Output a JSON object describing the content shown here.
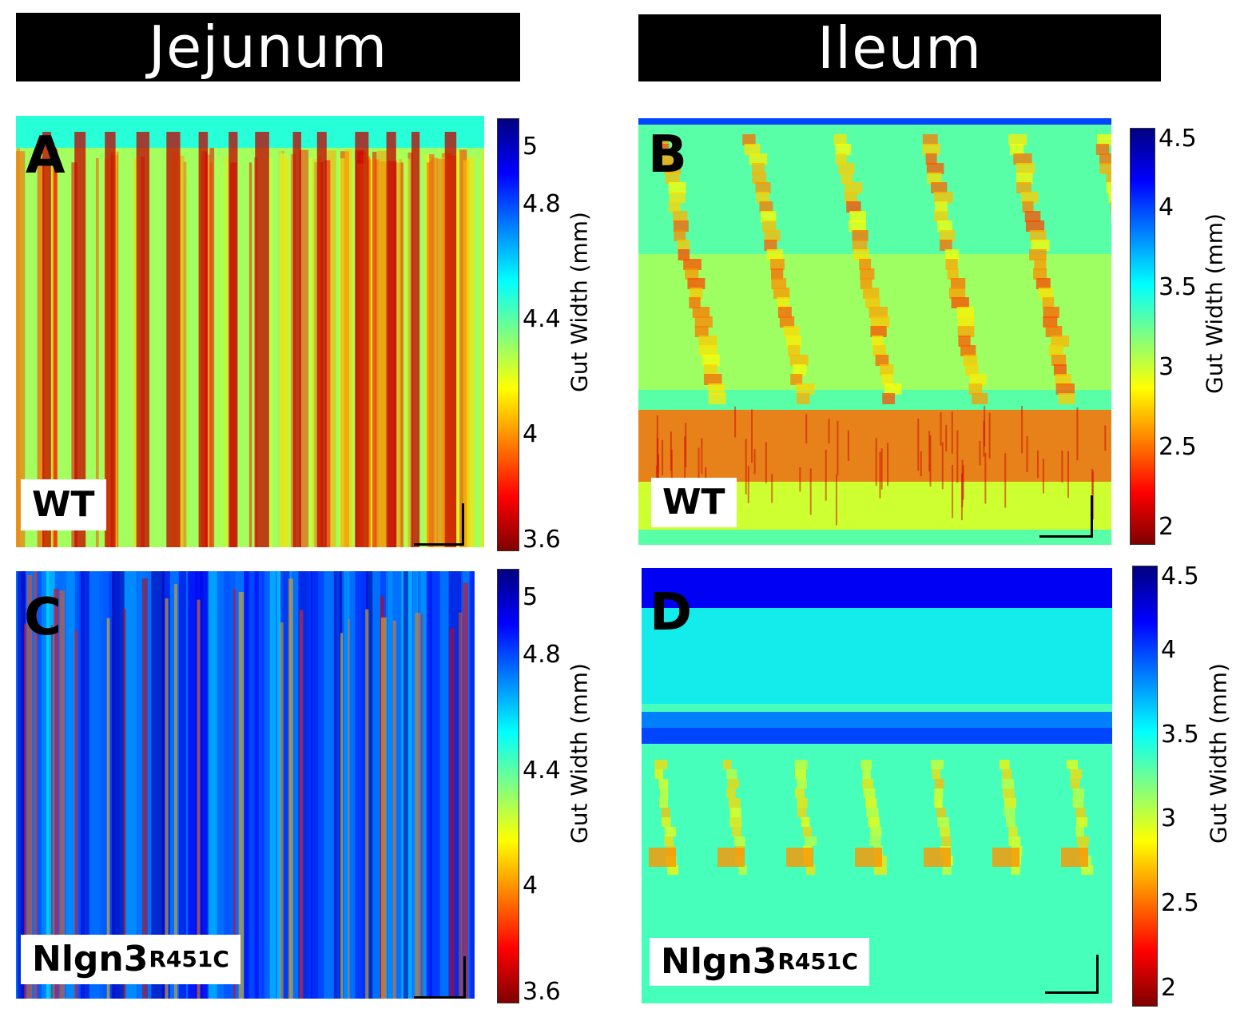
{
  "headers": {
    "left": "Jejunum",
    "right": "Ileum"
  },
  "colors": {
    "jet": [
      "#7f0000",
      "#ff0000",
      "#ff8000",
      "#ffff00",
      "#80ff80",
      "#00ffff",
      "#0080ff",
      "#0000ff",
      "#00007f"
    ],
    "header_bg": "#000000",
    "header_text": "#ffffff"
  },
  "chart_data": [
    {
      "type": "heatmap",
      "panel": "A",
      "region": "Jejunum",
      "genotype": "WT",
      "genotype_sup": "",
      "colorbar": {
        "label": "Gut Width (mm)",
        "min": 3.6,
        "max": 5.1,
        "ticks": [
          "5",
          "4.8",
          "4.4",
          "4",
          "3.6"
        ],
        "tick_values": [
          5,
          4.8,
          4.4,
          4,
          3.6
        ]
      },
      "pattern": "dense vertical contraction bands",
      "background_value": 4.3,
      "band_value": 3.7,
      "band_count": 14
    },
    {
      "type": "heatmap",
      "panel": "B",
      "region": "Ileum",
      "genotype": "WT",
      "genotype_sup": "",
      "colorbar": {
        "label": "Gut Width (mm)",
        "min": 1.9,
        "max": 4.5,
        "ticks": [
          "4.5",
          "4",
          "3.5",
          "3",
          "2.5",
          "2"
        ],
        "tick_values": [
          4.5,
          4,
          3.5,
          3,
          2.5,
          2
        ]
      },
      "pattern": "diagonal propagating contractions with lower constriction zone",
      "background_value": 3.3,
      "band_value": 2.4,
      "band_count": 6
    },
    {
      "type": "heatmap",
      "panel": "C",
      "region": "Jejunum",
      "genotype": "Nlgn3",
      "genotype_sup": "R451C",
      "colorbar": {
        "label": "Gut Width (mm)",
        "min": 3.6,
        "max": 5.1,
        "ticks": [
          "5",
          "4.8",
          "4.4",
          "4",
          "3.6"
        ],
        "tick_values": [
          5,
          4.8,
          4.4,
          4,
          3.6
        ]
      },
      "pattern": "irregular vertical streaks",
      "background_value": 4.75,
      "band_value": 4.1,
      "band_count": 30
    },
    {
      "type": "heatmap",
      "panel": "D",
      "region": "Ileum",
      "genotype": "Nlgn3",
      "genotype_sup": "R451C",
      "colorbar": {
        "label": "Gut Width (mm)",
        "min": 1.9,
        "max": 4.5,
        "ticks": [
          "4.5",
          "4",
          "3.5",
          "3",
          "2.5",
          "2"
        ],
        "tick_values": [
          4.5,
          4,
          3.5,
          3,
          2.5,
          2
        ]
      },
      "pattern": "weak localized contractions",
      "background_value": 3.35,
      "band_value": 2.7,
      "band_count": 7
    }
  ]
}
